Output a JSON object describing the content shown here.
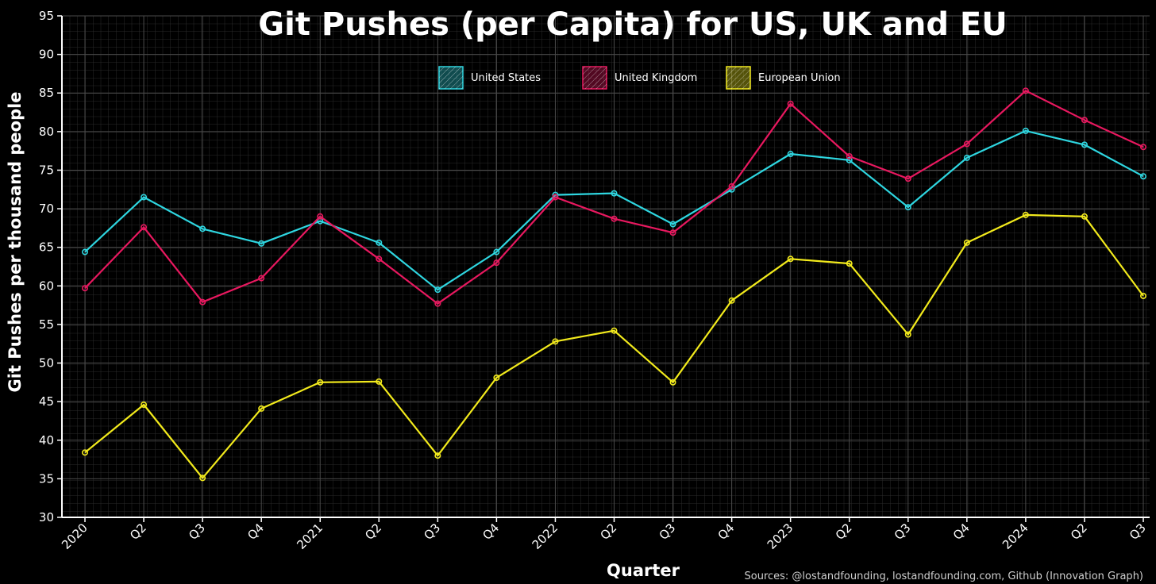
{
  "chart_data": {
    "type": "line",
    "title": "Git Pushes (per Capita) for US, UK and EU",
    "xlabel": "Quarter",
    "ylabel": "Git Pushes per thousand people",
    "source": "Sources: @lostandfounding, lostandfounding.com, Github (Innovation Graph)",
    "categories": [
      "2020",
      "Q2",
      "Q3",
      "Q4",
      "2021",
      "Q2",
      "Q3",
      "Q4",
      "2022",
      "Q2",
      "Q3",
      "Q4",
      "2023",
      "Q2",
      "Q3",
      "Q4",
      "2024",
      "Q2",
      "Q3"
    ],
    "yticks": [
      30,
      35,
      40,
      45,
      50,
      55,
      60,
      65,
      70,
      75,
      80,
      85,
      90,
      95
    ],
    "ylim": [
      30,
      95
    ],
    "grid": true,
    "legend_position": "top-center",
    "series": [
      {
        "name": "United States",
        "color": "#2ed6e0",
        "values": [
          64.4,
          71.5,
          67.4,
          65.5,
          68.4,
          65.6,
          59.5,
          64.4,
          71.8,
          72.0,
          68.0,
          72.5,
          77.1,
          76.3,
          70.2,
          76.6,
          80.1,
          78.3,
          74.2
        ]
      },
      {
        "name": "United Kingdom",
        "color": "#e8185f",
        "values": [
          59.7,
          67.6,
          57.9,
          61.0,
          69.0,
          63.5,
          57.7,
          63.0,
          71.5,
          68.7,
          66.9,
          72.9,
          83.6,
          76.8,
          73.9,
          78.4,
          85.3,
          81.5,
          78.0
        ]
      },
      {
        "name": "European Union",
        "color": "#f2ea1c",
        "values": [
          38.4,
          44.6,
          35.1,
          44.1,
          47.5,
          47.6,
          38.0,
          48.1,
          52.8,
          54.2,
          47.5,
          58.1,
          63.5,
          62.9,
          53.7,
          65.6,
          69.2,
          69.0,
          58.7
        ]
      }
    ]
  }
}
